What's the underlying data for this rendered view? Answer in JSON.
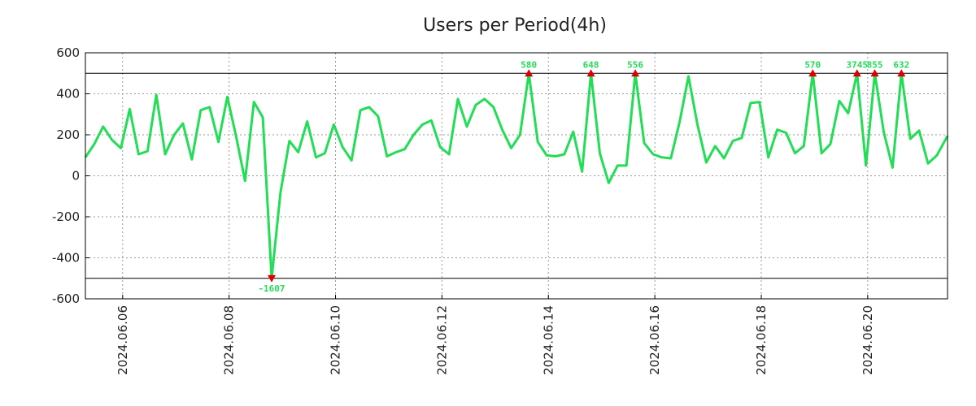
{
  "chart_data": {
    "type": "line",
    "title": "Users per Period(4h)",
    "xlabel": "",
    "ylabel": "",
    "ylim": [
      -600,
      600
    ],
    "y_ticks": [
      600,
      400,
      200,
      0,
      -200,
      -400,
      -600
    ],
    "x_ticks": [
      "2024.06.06",
      "2024.06.08",
      "2024.06.10",
      "2024.06.12",
      "2024.06.14",
      "2024.06.16",
      "2024.06.18",
      "2024.06.20"
    ],
    "x_tick_positions_days": [
      0.7,
      2.7,
      4.7,
      6.7,
      8.7,
      10.7,
      12.7,
      14.7
    ],
    "x_range_days": [
      0,
      16.2
    ],
    "threshold_lines": [
      500,
      -500
    ],
    "grid": true,
    "series": [
      {
        "name": "users",
        "color": "#22dd55",
        "x_days": [
          0,
          0.167,
          0.333,
          0.5,
          0.667,
          0.833,
          1,
          1.167,
          1.333,
          1.5,
          1.667,
          1.833,
          2,
          2.167,
          2.333,
          2.5,
          2.667,
          2.833,
          3,
          3.167,
          3.333,
          3.5,
          3.667,
          3.833,
          4,
          4.167,
          4.333,
          4.5,
          4.667,
          4.833,
          5,
          5.167,
          5.333,
          5.5,
          5.667,
          5.833,
          6,
          6.167,
          6.333,
          6.5,
          6.667,
          6.833,
          7,
          7.167,
          7.333,
          7.5,
          7.667,
          7.833,
          8,
          8.167,
          8.333,
          8.5,
          8.667,
          8.833,
          9,
          9.167,
          9.333,
          9.5,
          9.667,
          9.833,
          10,
          10.167,
          10.333,
          10.5,
          10.667,
          10.833,
          11,
          11.167,
          11.333,
          11.5,
          11.667,
          11.833,
          12,
          12.167,
          12.333,
          12.5,
          12.667,
          12.833,
          13,
          13.167,
          13.333,
          13.5,
          13.667,
          13.833,
          14,
          14.167,
          14.333,
          14.5,
          14.667,
          14.833,
          15,
          15.167,
          15.333,
          15.5,
          15.667,
          15.833,
          16,
          16.2
        ],
        "values": [
          90,
          155,
          240,
          175,
          135,
          325,
          105,
          120,
          395,
          105,
          200,
          255,
          80,
          320,
          335,
          165,
          385,
          190,
          -25,
          360,
          285,
          -500,
          -80,
          170,
          115,
          265,
          90,
          110,
          250,
          140,
          75,
          320,
          335,
          290,
          95,
          115,
          130,
          200,
          250,
          270,
          140,
          105,
          375,
          240,
          345,
          375,
          335,
          225,
          135,
          200,
          500,
          165,
          100,
          95,
          105,
          215,
          20,
          500,
          110,
          -35,
          50,
          50,
          500,
          160,
          105,
          90,
          85,
          265,
          485,
          250,
          65,
          145,
          85,
          170,
          185,
          355,
          360,
          90,
          225,
          210,
          110,
          145,
          500,
          110,
          155,
          365,
          305,
          500,
          50,
          500,
          215,
          40,
          500,
          180,
          220,
          60,
          100,
          195
        ]
      }
    ],
    "annotations": [
      {
        "label": "-1607",
        "x_day": 3.5,
        "direction": "down"
      },
      {
        "label": "580",
        "x_day": 8.333,
        "direction": "up"
      },
      {
        "label": "648",
        "x_day": 9.5,
        "direction": "up"
      },
      {
        "label": "556",
        "x_day": 10.333,
        "direction": "up"
      },
      {
        "label": "570",
        "x_day": 13.667,
        "direction": "up"
      },
      {
        "label": "3745",
        "x_day": 14.5,
        "direction": "up"
      },
      {
        "label": "855",
        "x_day": 14.833,
        "direction": "up"
      },
      {
        "label": "632",
        "x_day": 15.333,
        "direction": "up"
      }
    ],
    "annotation_color": "#22dd55",
    "marker_color": "#dd0000"
  }
}
